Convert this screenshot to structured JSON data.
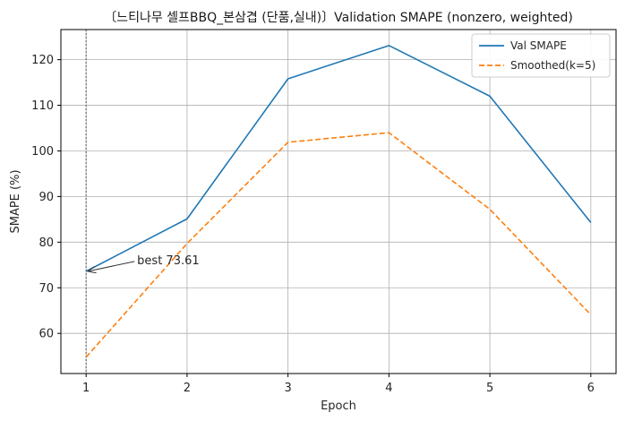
{
  "chart_data": {
    "type": "line",
    "title": "〔느티나무 셀프BBQ_본삼겹 (단품,실내)〕Validation SMAPE (nonzero, weighted)",
    "xlabel": "Epoch",
    "ylabel": "SMAPE (%)",
    "x": [
      1,
      2,
      3,
      4,
      5,
      6
    ],
    "xticks": [
      "1",
      "2",
      "3",
      "4",
      "5",
      "6"
    ],
    "yticks": [
      "60",
      "70",
      "80",
      "90",
      "100",
      "110",
      "120"
    ],
    "xlim": [
      0.75,
      6.25
    ],
    "ylim": [
      51.2,
      126.6
    ],
    "grid": true,
    "legend_position": "upper right",
    "series": [
      {
        "name": "Val SMAPE",
        "values": [
          73.61,
          85.1,
          115.8,
          123.1,
          112.0,
          84.3
        ],
        "color": "#1f77b4",
        "style": "solid"
      },
      {
        "name": "Smoothed(k=5)",
        "values": [
          54.8,
          79.7,
          101.9,
          104.0,
          87.2,
          64.1
        ],
        "color": "#ff7f0e",
        "style": "dashed"
      }
    ],
    "vline": {
      "x": 1,
      "color": "#808080",
      "style": "dotted"
    },
    "annotation": {
      "text": "best 73.61",
      "x": 1,
      "y": 73.61
    }
  }
}
